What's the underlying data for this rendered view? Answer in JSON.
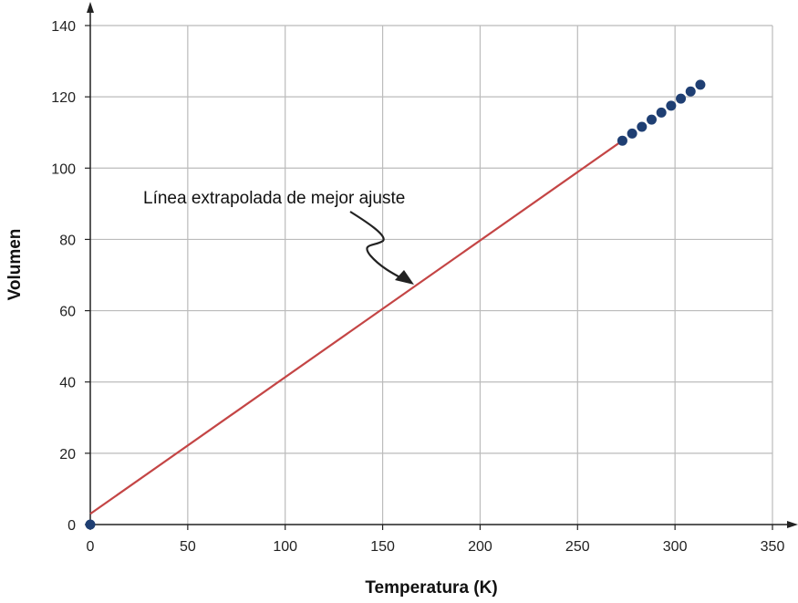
{
  "chart_data": {
    "type": "scatter",
    "xlabel": "Temperatura (K)",
    "ylabel": "Volumen",
    "xlim": [
      0,
      350
    ],
    "ylim": [
      0,
      140
    ],
    "xticks": [
      0,
      50,
      100,
      150,
      200,
      250,
      300,
      350
    ],
    "yticks": [
      0,
      20,
      40,
      60,
      80,
      100,
      120,
      140
    ],
    "xtick_labels": [
      "0",
      "50",
      "100",
      "150",
      "200",
      "250",
      "300",
      "350"
    ],
    "ytick_labels": [
      "0",
      "20",
      "40",
      "60",
      "80",
      "100",
      "120",
      "140"
    ],
    "grid": true,
    "points": {
      "x": [
        0,
        273,
        278,
        283,
        288,
        293,
        298,
        303,
        308,
        313
      ],
      "y": [
        0,
        107.7,
        109.7,
        111.6,
        113.6,
        115.6,
        117.5,
        119.5,
        121.5,
        123.4
      ],
      "color": "#1f3f73"
    },
    "fit_line": {
      "x": [
        0,
        273
      ],
      "y": [
        3,
        107.7
      ],
      "color": "#c44545"
    },
    "annotation": "Línea extrapolada de mejor ajuste"
  }
}
